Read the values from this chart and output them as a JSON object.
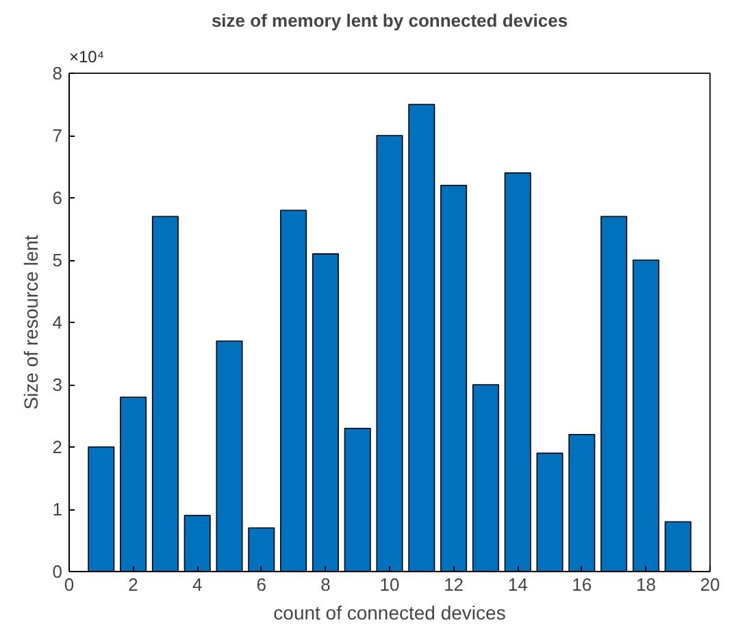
{
  "chart_data": {
    "type": "bar",
    "title": "size of memory lent by connected devices",
    "xlabel": "count of connected devices",
    "ylabel": "Size of resource lent",
    "x": [
      1,
      2,
      3,
      4,
      5,
      6,
      7,
      8,
      9,
      10,
      11,
      12,
      13,
      14,
      15,
      16,
      17,
      18,
      19
    ],
    "series": [
      {
        "color": "#0072bd",
        "values": [
          2.0,
          2.8,
          5.7,
          0.9,
          3.7,
          0.7,
          5.8,
          5.1,
          2.3,
          7.0,
          7.5,
          6.2,
          3.0,
          6.4,
          1.9,
          2.2,
          5.7,
          5.0,
          0.8
        ]
      }
    ],
    "xlim": [
      0,
      20
    ],
    "xticks": [
      0,
      2,
      4,
      6,
      8,
      10,
      12,
      14,
      16,
      18,
      20
    ],
    "ylim": [
      0,
      8
    ],
    "yticks": [
      0,
      1,
      2,
      3,
      4,
      5,
      6,
      7,
      8
    ],
    "annotations": [
      "×10⁴"
    ],
    "grid": false
  }
}
